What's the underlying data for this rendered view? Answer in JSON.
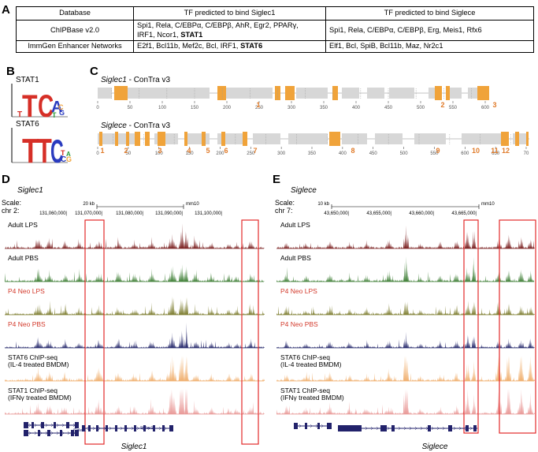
{
  "panels": [
    "A",
    "B",
    "C",
    "D",
    "E"
  ],
  "table": {
    "headers": [
      "Database",
      "TF predicted to bind Siglec1",
      "TF predicted to bind Siglece"
    ],
    "rows": [
      {
        "db": "ChIPBase v2.0",
        "siglec1_a": "Spi1, Rela, C/EBPα, C/EBPβ, AhR, Egr2, PPARγ,",
        "siglec1_b": "IRF1, Ncor1, ",
        "siglec1_bold": "STAT1",
        "siglece": "Spi1, Rela, C/EBPα, C/EBPβ, Erg, Meis1, Rfx6"
      },
      {
        "db": "ImmGen Enhancer Networks",
        "siglec1_a": "E2f1, Bcl11b, Mef2c, Bcl, IRF1, ",
        "siglec1_bold": "STAT6",
        "siglece": "Elf1, Bcl, SpiB, Bcl11b, Maz, Nr2c1"
      }
    ]
  },
  "logos": [
    {
      "label": "STAT1",
      "letters": [
        "T",
        "T",
        "C",
        "A",
        "T",
        "G",
        "C",
        "T",
        "A"
      ]
    },
    {
      "label": "STAT6",
      "letters": [
        "T",
        "T",
        "C",
        "C",
        "T",
        "G",
        "A"
      ]
    }
  ],
  "contra": [
    {
      "gene": "Siglec1",
      "suffix": " - ConTra v3",
      "ticks": [
        "0",
        "50",
        "100",
        "150",
        "200",
        "250",
        "300",
        "350",
        "400",
        "450",
        "500",
        "550",
        "600"
      ],
      "sites": [
        "1",
        "2",
        "3"
      ]
    },
    {
      "gene": "Siglece",
      "suffix": " - ConTra v3",
      "ticks": [
        "0",
        "50",
        "100",
        "150",
        "200",
        "250",
        "300",
        "350",
        "400",
        "450",
        "500",
        "550",
        "600",
        "650",
        "70"
      ],
      "sites": [
        "1",
        "2",
        "3",
        "4",
        "5",
        "6",
        "7",
        "8",
        "9",
        "10",
        "11",
        "12"
      ]
    }
  ],
  "browser_d": {
    "gene_title": "Siglec1",
    "scale_label": "Scale:",
    "chr_label": "chr 2:",
    "scale_bar": "20 kb",
    "assembly": "mm10",
    "coords": [
      "131,060,000|",
      "131,070,000|",
      "131,080,000|",
      "131,090,000|",
      "131,100,000|"
    ],
    "gene_label": "Siglec1",
    "gene_small": [
      "Siglec1",
      "Siglec1"
    ]
  },
  "browser_e": {
    "gene_title": "Siglece",
    "scale_label": "Scale:",
    "chr_label": "chr 7:",
    "scale_bar": "10 kb",
    "assembly": "mm10",
    "coords": [
      "43,650,000|",
      "43,655,000|",
      "43,660,000|",
      "43,665,000|"
    ],
    "gene_label": "Siglece",
    "gene_small": [
      "Siglece"
    ]
  },
  "tracks": [
    {
      "label": "Adult LPS",
      "color": "#7a1f1f",
      "label_color": "#000000"
    },
    {
      "label": "Adult PBS",
      "color": "#3f7f36",
      "label_color": "#000000"
    },
    {
      "label": "P4 Neo LPS",
      "color": "#7c7c2e",
      "label_color": "#d33a2c"
    },
    {
      "label": "P4 Neo PBS",
      "color": "#23266a",
      "label_color": "#d33a2c"
    },
    {
      "label": "STAT6 ChIP-seq",
      "label2": "(IL-4 treated BMDM)",
      "color": "#f0b070",
      "label_color": "#000000"
    },
    {
      "label": "STAT1 ChIP-seq",
      "label2": "(IFNγ treated BMDM)",
      "color": "#e99a98",
      "label_color": "#000000"
    }
  ],
  "colors": {
    "site": "#f0a33a",
    "site_text": "#e07b2a",
    "box": "#e32a2a",
    "grey": "#d7d7d7"
  }
}
